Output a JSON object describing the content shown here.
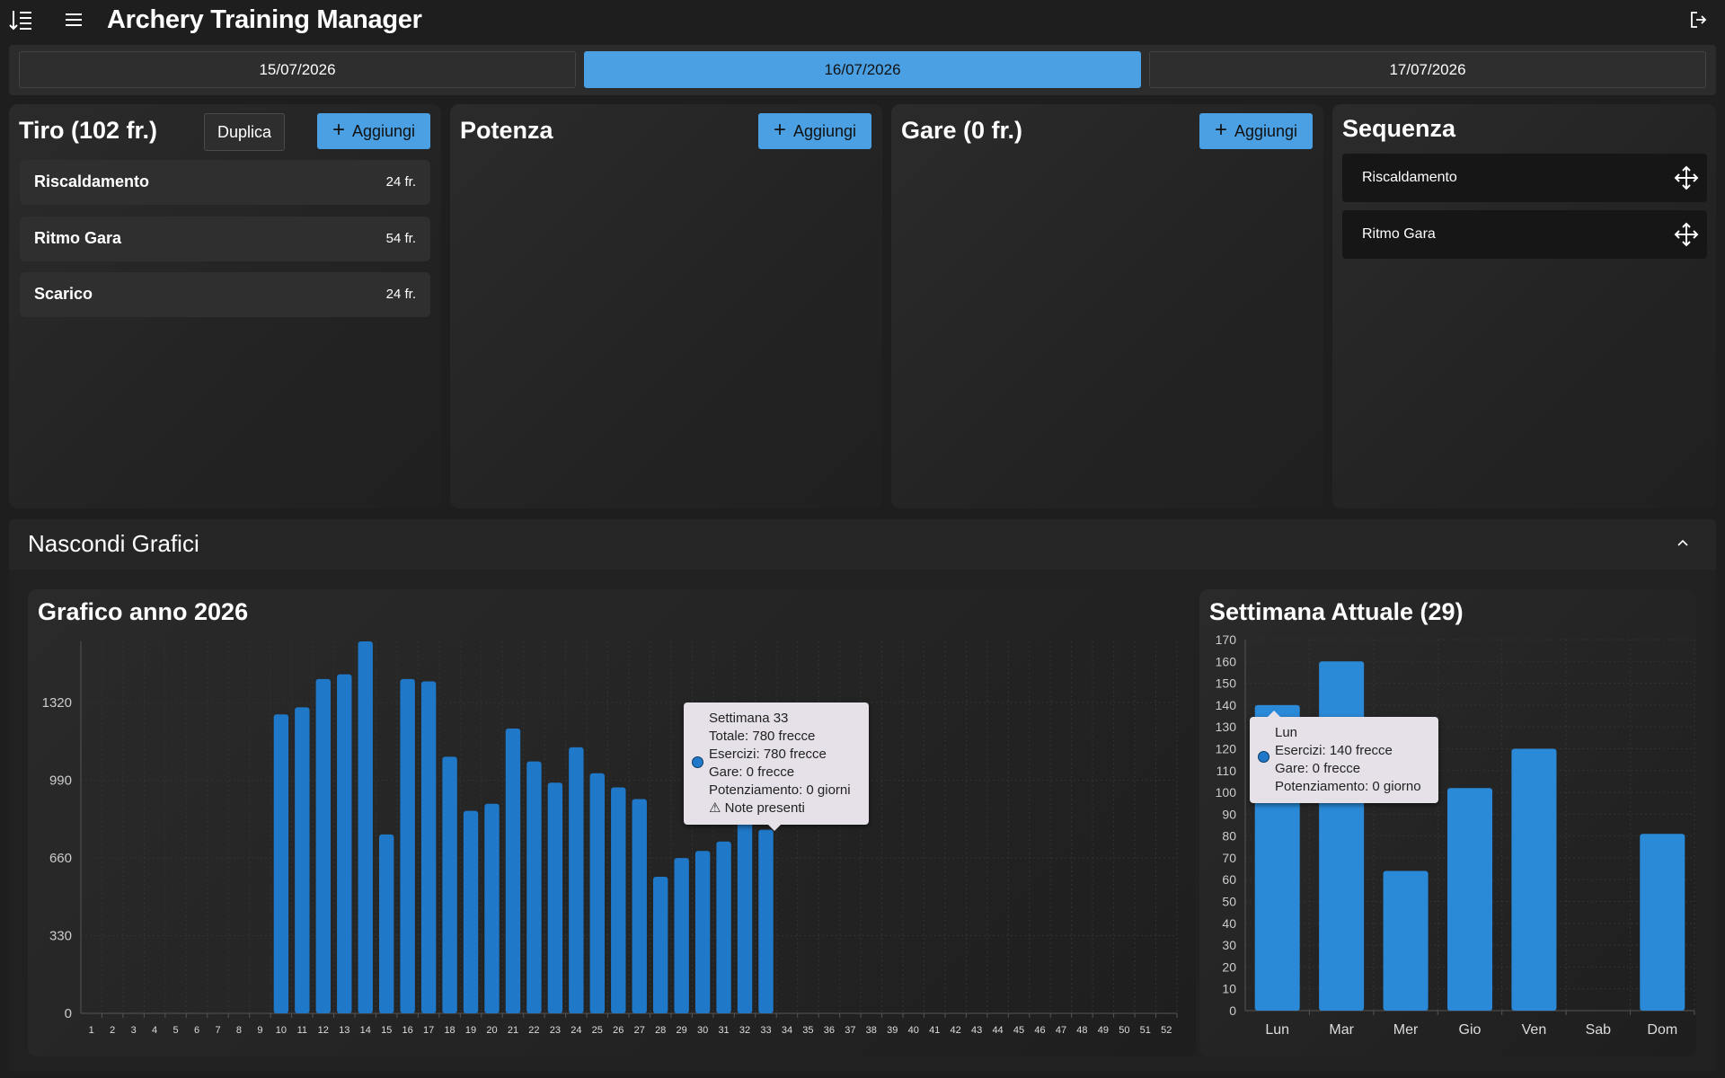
{
  "app": {
    "title": "Archery Training Manager"
  },
  "dates": [
    {
      "label": "15/07/2026",
      "active": false
    },
    {
      "label": "16/07/2026",
      "active": true
    },
    {
      "label": "17/07/2026",
      "active": false
    }
  ],
  "panels": {
    "tiro": {
      "title": "Tiro (102 fr.)",
      "duplicate_label": "Duplica",
      "add_label": "Aggiungi",
      "items": [
        {
          "name": "Riscaldamento",
          "count": "24 fr."
        },
        {
          "name": "Ritmo Gara",
          "count": "54 fr."
        },
        {
          "name": "Scarico",
          "count": "24 fr."
        }
      ]
    },
    "potenza": {
      "title": "Potenza",
      "add_label": "Aggiungi"
    },
    "gare": {
      "title": "Gare (0 fr.)",
      "add_label": "Aggiungi"
    },
    "sequenza": {
      "title": "Sequenza",
      "items": [
        {
          "name": "Riscaldamento"
        },
        {
          "name": "Ritmo Gara"
        }
      ]
    }
  },
  "charts_section": {
    "toggle_label": "Nascondi Grafici"
  },
  "year_chart": {
    "title": "Grafico anno 2026",
    "tooltip": {
      "lines": [
        "Settimana 33",
        "Totale: 780 frecce",
        "Esercizi: 780 frecce",
        "Gare: 0 frecce",
        "Potenziamento: 0 giorni",
        "⚠ Note presenti"
      ]
    }
  },
  "week_chart": {
    "title": "Settimana Attuale (29)",
    "tooltip": {
      "lines": [
        "Lun",
        "Esercizi: 140 frecce",
        "Gare: 0 frecce",
        "Potenziamento: 0 giorno"
      ]
    }
  },
  "colors": {
    "accent": "#4aa0e3",
    "bar": "#1f78c8",
    "bar_week": "#2a8ad8",
    "tooltip_bg": "#e6e1e8"
  },
  "icons": {
    "sort": "sort-icon",
    "menu": "menu-icon",
    "logout": "logout-icon",
    "move": "move-icon",
    "collapse": "chevron-up-icon",
    "add": "plus-icon"
  },
  "chart_data": [
    {
      "type": "bar",
      "title": "Grafico anno 2026",
      "categories": [
        "1",
        "2",
        "3",
        "4",
        "5",
        "6",
        "7",
        "8",
        "9",
        "10",
        "11",
        "12",
        "13",
        "14",
        "15",
        "16",
        "17",
        "18",
        "19",
        "20",
        "21",
        "22",
        "23",
        "24",
        "25",
        "26",
        "27",
        "28",
        "29",
        "30",
        "31",
        "32",
        "33",
        "34",
        "35",
        "36",
        "37",
        "38",
        "39",
        "40",
        "41",
        "42",
        "43",
        "44",
        "45",
        "46",
        "47",
        "48",
        "49",
        "50",
        "51",
        "52"
      ],
      "values": [
        0,
        0,
        0,
        0,
        0,
        0,
        0,
        0,
        0,
        1270,
        1300,
        1420,
        1440,
        1580,
        760,
        1420,
        1410,
        1090,
        860,
        890,
        1210,
        1070,
        980,
        1130,
        1020,
        960,
        910,
        580,
        660,
        690,
        730,
        910,
        780,
        0,
        0,
        0,
        0,
        0,
        0,
        0,
        0,
        0,
        0,
        0,
        0,
        0,
        0,
        0,
        0,
        0,
        0,
        0
      ],
      "yticks": [
        0,
        330,
        660,
        990,
        1320
      ],
      "ylim": [
        0,
        1580
      ],
      "grid": true
    },
    {
      "type": "bar",
      "title": "Settimana Attuale (29)",
      "categories": [
        "Lun",
        "Mar",
        "Mer",
        "Gio",
        "Ven",
        "Sab",
        "Dom"
      ],
      "values": [
        140,
        160,
        64,
        102,
        120,
        0,
        81
      ],
      "yticks": [
        0,
        10,
        20,
        30,
        40,
        50,
        60,
        70,
        80,
        90,
        100,
        110,
        120,
        130,
        140,
        150,
        160,
        170
      ],
      "ylim": [
        0,
        170
      ],
      "grid": true
    }
  ]
}
